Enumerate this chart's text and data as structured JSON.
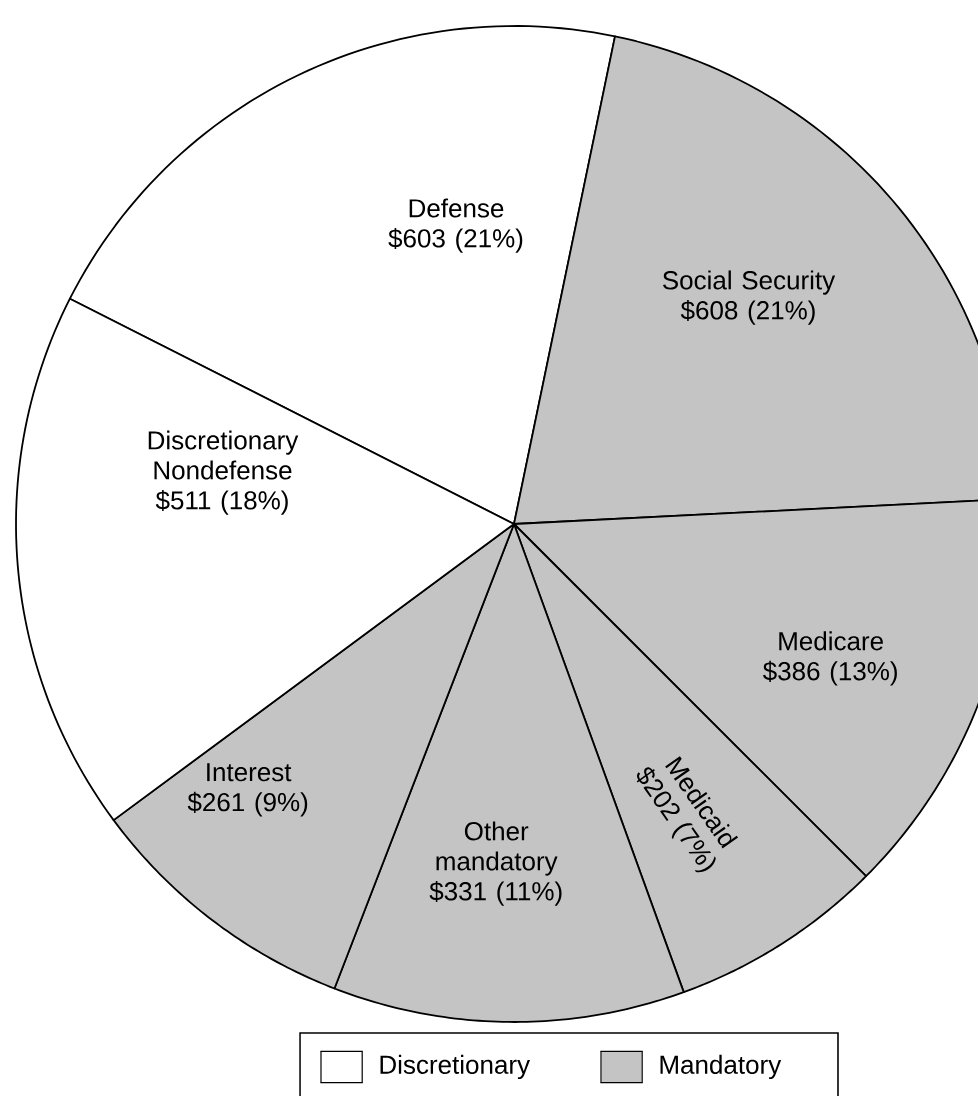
{
  "chart_data": {
    "type": "pie",
    "categories": [
      "Defense",
      "Social Security",
      "Medicare",
      "Medicaid",
      "Other mandatory",
      "Interest",
      "Discretionary Nondefense"
    ],
    "values": [
      603,
      608,
      386,
      202,
      331,
      261,
      511
    ],
    "colors": [
      "#ffffff",
      "#c4c4c4",
      "#c4c4c4",
      "#c4c4c4",
      "#c4c4c4",
      "#c4c4c4",
      "#ffffff"
    ],
    "value_labels": [
      "$603 (21%)",
      "$608 (21%)",
      "$386 (13%)",
      "$202 (7%)",
      "$331 (11%)",
      "$261 (9%)",
      "$511 (18%)"
    ],
    "annotations": [
      "Discretionary",
      "Mandatory"
    ]
  }
}
